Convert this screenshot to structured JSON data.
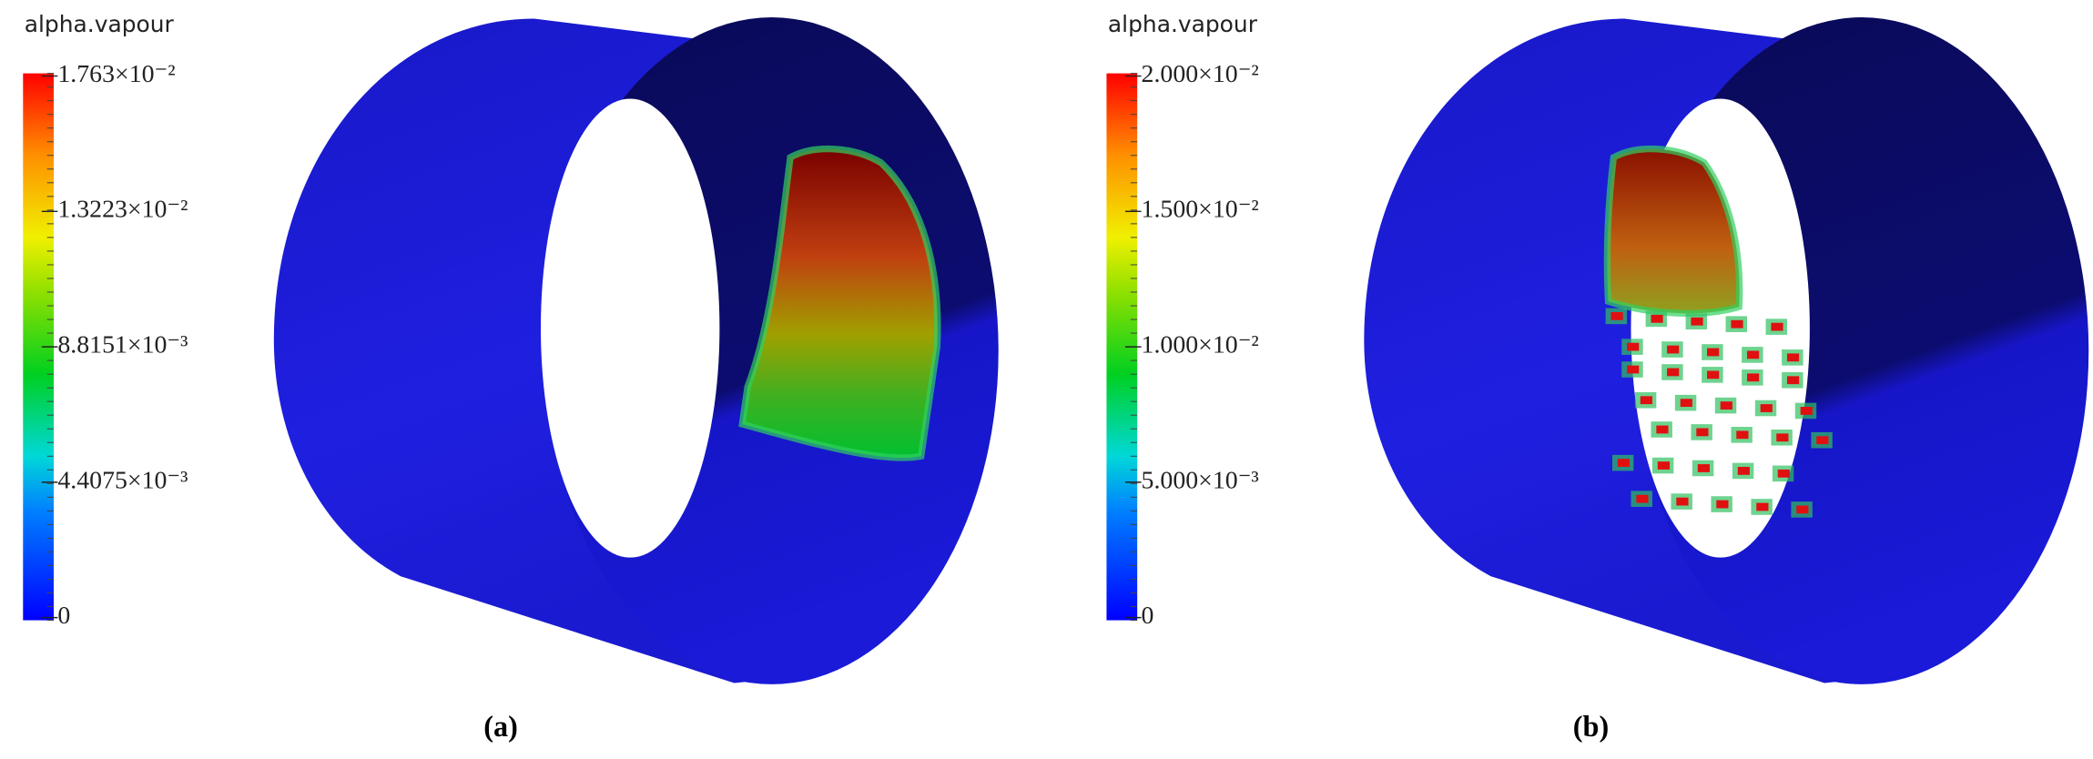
{
  "panels": [
    {
      "colorbar": {
        "title": "alpha.vapour",
        "ticks": [
          "1.763×10⁻²",
          "1.3223×10⁻²",
          "8.8151×10⁻³",
          "4.4075×10⁻³",
          "0"
        ]
      },
      "caption": "(a)"
    },
    {
      "colorbar": {
        "title": "alpha.vapour",
        "ticks": [
          "2.000×10⁻²",
          "1.500×10⁻²",
          "1.000×10⁻²",
          "5.000×10⁻³",
          "0"
        ]
      },
      "caption": "(b)"
    }
  ]
}
